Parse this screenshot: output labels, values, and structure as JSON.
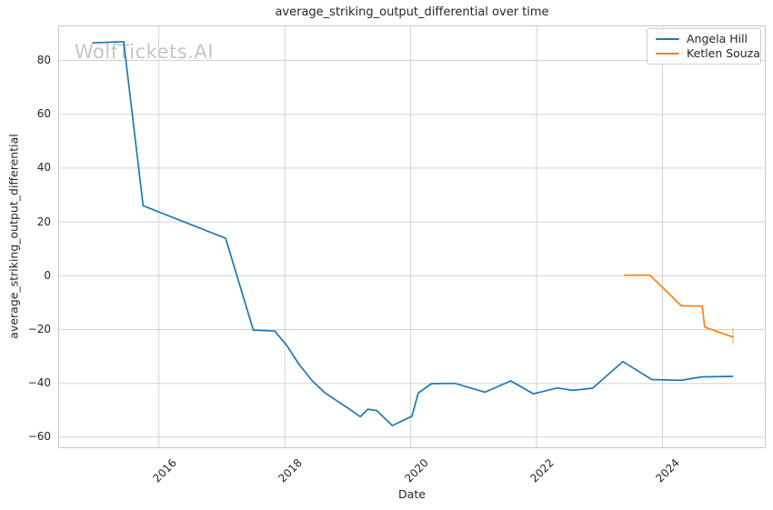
{
  "watermark": "WolfTickets.AI",
  "chart_data": {
    "type": "line",
    "title": "average_striking_output_differential over time",
    "xlabel": "Date",
    "ylabel": "average_striking_output_differential",
    "grid": true,
    "legend_position": "upper right",
    "xlim": [
      2014.4,
      2025.64
    ],
    "ylim": [
      -64.1,
      93.0
    ],
    "x_ticks": [
      2016,
      2018,
      2020,
      2022,
      2024
    ],
    "y_ticks": [
      80,
      60,
      40,
      20,
      0,
      -20,
      -40,
      -60
    ],
    "series": [
      {
        "name": "Angela Hill",
        "color": "#1f77b4",
        "x": [
          2014.94,
          2015.44,
          2015.75,
          2017.06,
          2017.5,
          2017.84,
          2018.03,
          2018.22,
          2018.43,
          2018.63,
          2018.82,
          2019.01,
          2019.2,
          2019.32,
          2019.46,
          2019.71,
          2020.02,
          2020.12,
          2020.33,
          2020.7,
          2021.18,
          2021.59,
          2021.95,
          2022.33,
          2022.57,
          2022.89,
          2023.37,
          2023.83,
          2024.29,
          2024.62,
          2025.12
        ],
        "y": [
          86.5,
          87.0,
          26.0,
          13.9,
          -20.2,
          -20.6,
          -25.9,
          -32.7,
          -38.9,
          -43.4,
          -46.4,
          -49.3,
          -52.4,
          -49.6,
          -50.1,
          -55.7,
          -52.2,
          -43.6,
          -40.1,
          -40.0,
          -43.3,
          -39.1,
          -43.9,
          -41.7,
          -42.6,
          -41.8,
          -31.9,
          -38.6,
          -38.9,
          -37.6,
          -37.4
        ]
      },
      {
        "name": "Ketlen Souza",
        "color": "#ff7f0e",
        "x": [
          2023.39,
          2023.8,
          2024.3,
          2024.63,
          2024.67,
          2025.12
        ],
        "y": [
          0.2,
          0.2,
          -11.2,
          -11.3,
          -19.1,
          -22.8
        ],
        "end_cap": {
          "x": 2025.12,
          "y1": -19.4,
          "y2": -25.6
        }
      }
    ]
  }
}
